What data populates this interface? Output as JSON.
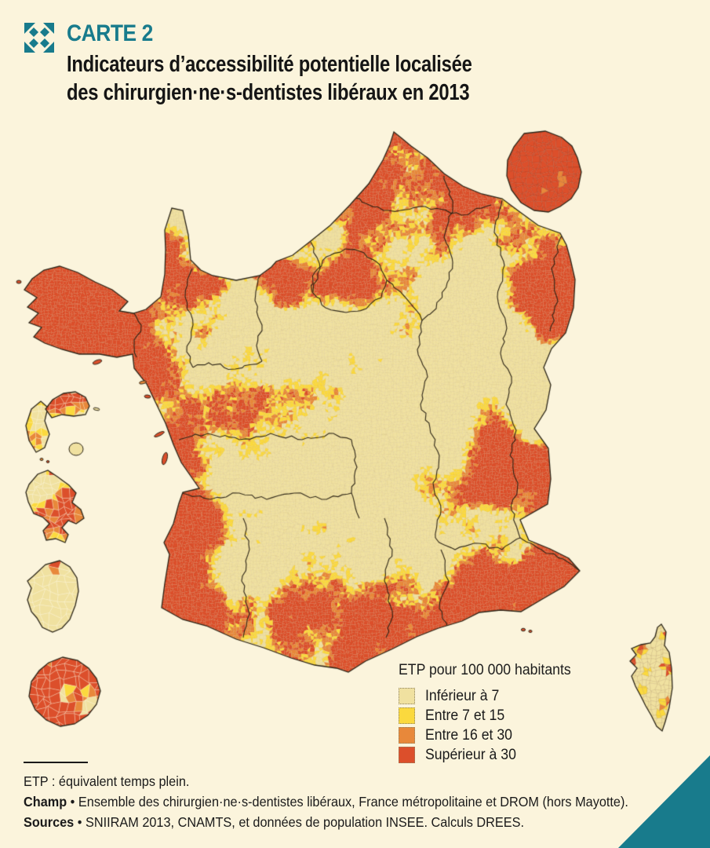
{
  "page": {
    "background": "#FBF4DC",
    "accent_teal": "#187B8C",
    "outline_color": "#2B2518",
    "region_border_color": "rgba(42,34,20,0.95)"
  },
  "header": {
    "icon": "expand-arrows-icon",
    "kicker": "CARTE 2",
    "title_line1": "Indicateurs d’accessibilité potentielle localisée",
    "title_line2": "des chirurgien·ne·s-dentistes libéraux en 2013"
  },
  "map": {
    "type": "choropleth",
    "unit": "ETP pour 100 000 habitants",
    "areas_depicted": [
      "France métropolitaine",
      "Île-de-France (agrandissement)",
      "Guadeloupe",
      "Martinique",
      "Guyane",
      "La Réunion",
      "Corse"
    ]
  },
  "legend": {
    "title": "ETP pour 100 000 habitants",
    "items": [
      {
        "label": "Inférieur à 7",
        "color": "#F0E1A0"
      },
      {
        "label": "Entre 7 et 15",
        "color": "#FBD93E"
      },
      {
        "label": "Entre 16 et 30",
        "color": "#E8883A"
      },
      {
        "label": "Supérieur à 30",
        "color": "#DC4F2B"
      }
    ]
  },
  "footnotes": {
    "note": "ETP : équivalent temps plein.",
    "champ_label": "Champ",
    "champ_sep": " • ",
    "champ_text": "Ensemble des chirurgien·ne·s-dentistes libéraux, France métropolitaine et DROM (hors Mayotte).",
    "sources_label": "Sources",
    "sources_sep": " • ",
    "sources_text": "SNIIRAM 2013, CNAMTS, et données de population INSEE. Calculs DREES."
  }
}
